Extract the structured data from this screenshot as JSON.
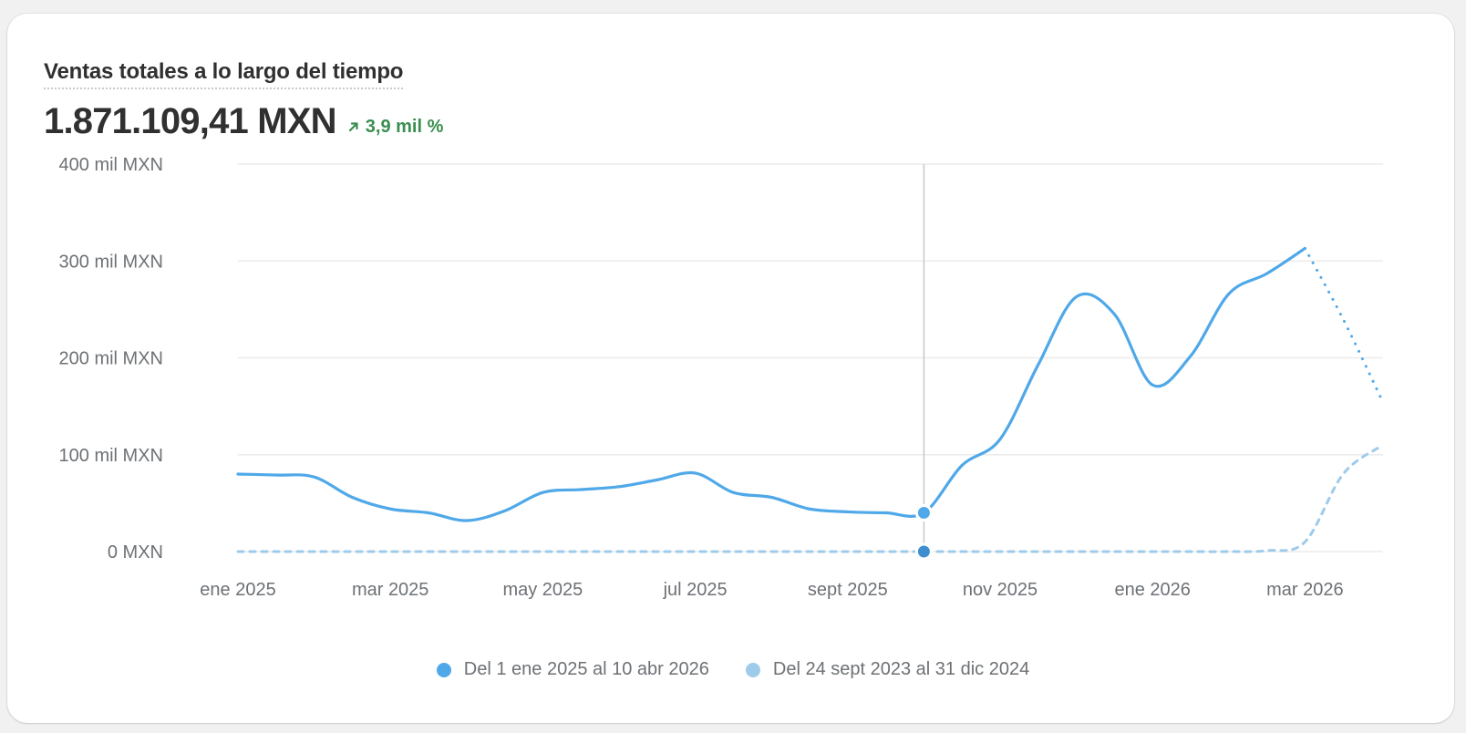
{
  "card": {
    "title": "Ventas totales a lo largo del tiempo",
    "total": "1.871.109,41 MXN",
    "change": "3,9 mil %",
    "change_direction": "up",
    "change_color": "#3a8e4f"
  },
  "legend": [
    {
      "label": "Del 1 ene 2025 al 10 abr 2026",
      "color": "#4fa8e8"
    },
    {
      "label": "Del 24 sept 2023 al 31 dic 2024",
      "color": "#9ecbea"
    }
  ],
  "hover": {
    "x_index": 18
  },
  "chart_data": {
    "type": "line",
    "title": "Ventas totales a lo largo del tiempo",
    "xlabel": "",
    "ylabel": "",
    "ylim": [
      0,
      400000
    ],
    "grid": true,
    "legend_position": "bottom",
    "y_ticks": [
      "0 MXN",
      "100 mil MXN",
      "200 mil MXN",
      "300 mil MXN",
      "400 mil MXN"
    ],
    "x_ticks": [
      "ene 2025",
      "mar 2025",
      "may 2025",
      "jul 2025",
      "sept 2025",
      "nov 2025",
      "ene 2026",
      "mar 2026"
    ],
    "x": [
      "1 ene 2025",
      "15 ene 2025",
      "1 feb 2025",
      "15 feb 2025",
      "1 mar 2025",
      "15 mar 2025",
      "1 abr 2025",
      "15 abr 2025",
      "1 may 2025",
      "15 may 2025",
      "1 jun 2025",
      "15 jun 2025",
      "1 jul 2025",
      "15 jul 2025",
      "1 ago 2025",
      "15 ago 2025",
      "1 sept 2025",
      "15 sept 2025",
      "1 oct 2025",
      "15 oct 2025",
      "1 nov 2025",
      "15 nov 2025",
      "1 dic 2025",
      "15 dic 2025",
      "1 ene 2026",
      "15 ene 2026",
      "1 feb 2026",
      "15 feb 2026",
      "1 mar 2026",
      "15 mar 2026",
      "10 abr 2026"
    ],
    "series": [
      {
        "name": "Del 1 ene 2025 al 10 abr 2026",
        "style": "solid",
        "incomplete_from_index": 28,
        "values": [
          80000,
          79000,
          77000,
          56000,
          44000,
          40000,
          32000,
          42000,
          61000,
          64000,
          67000,
          74000,
          81000,
          61000,
          56000,
          44000,
          41000,
          40000,
          40000,
          89000,
          116000,
          193000,
          263000,
          245000,
          172000,
          202000,
          266000,
          287000,
          313000,
          240000,
          158000
        ]
      },
      {
        "name": "Del 24 sept 2023 al 31 dic 2024",
        "style": "dashed",
        "values": [
          0,
          0,
          0,
          0,
          0,
          0,
          0,
          0,
          0,
          0,
          0,
          0,
          0,
          0,
          0,
          0,
          0,
          0,
          0,
          0,
          0,
          0,
          0,
          0,
          0,
          0,
          0,
          1000,
          10000,
          80000,
          109000
        ]
      }
    ]
  }
}
